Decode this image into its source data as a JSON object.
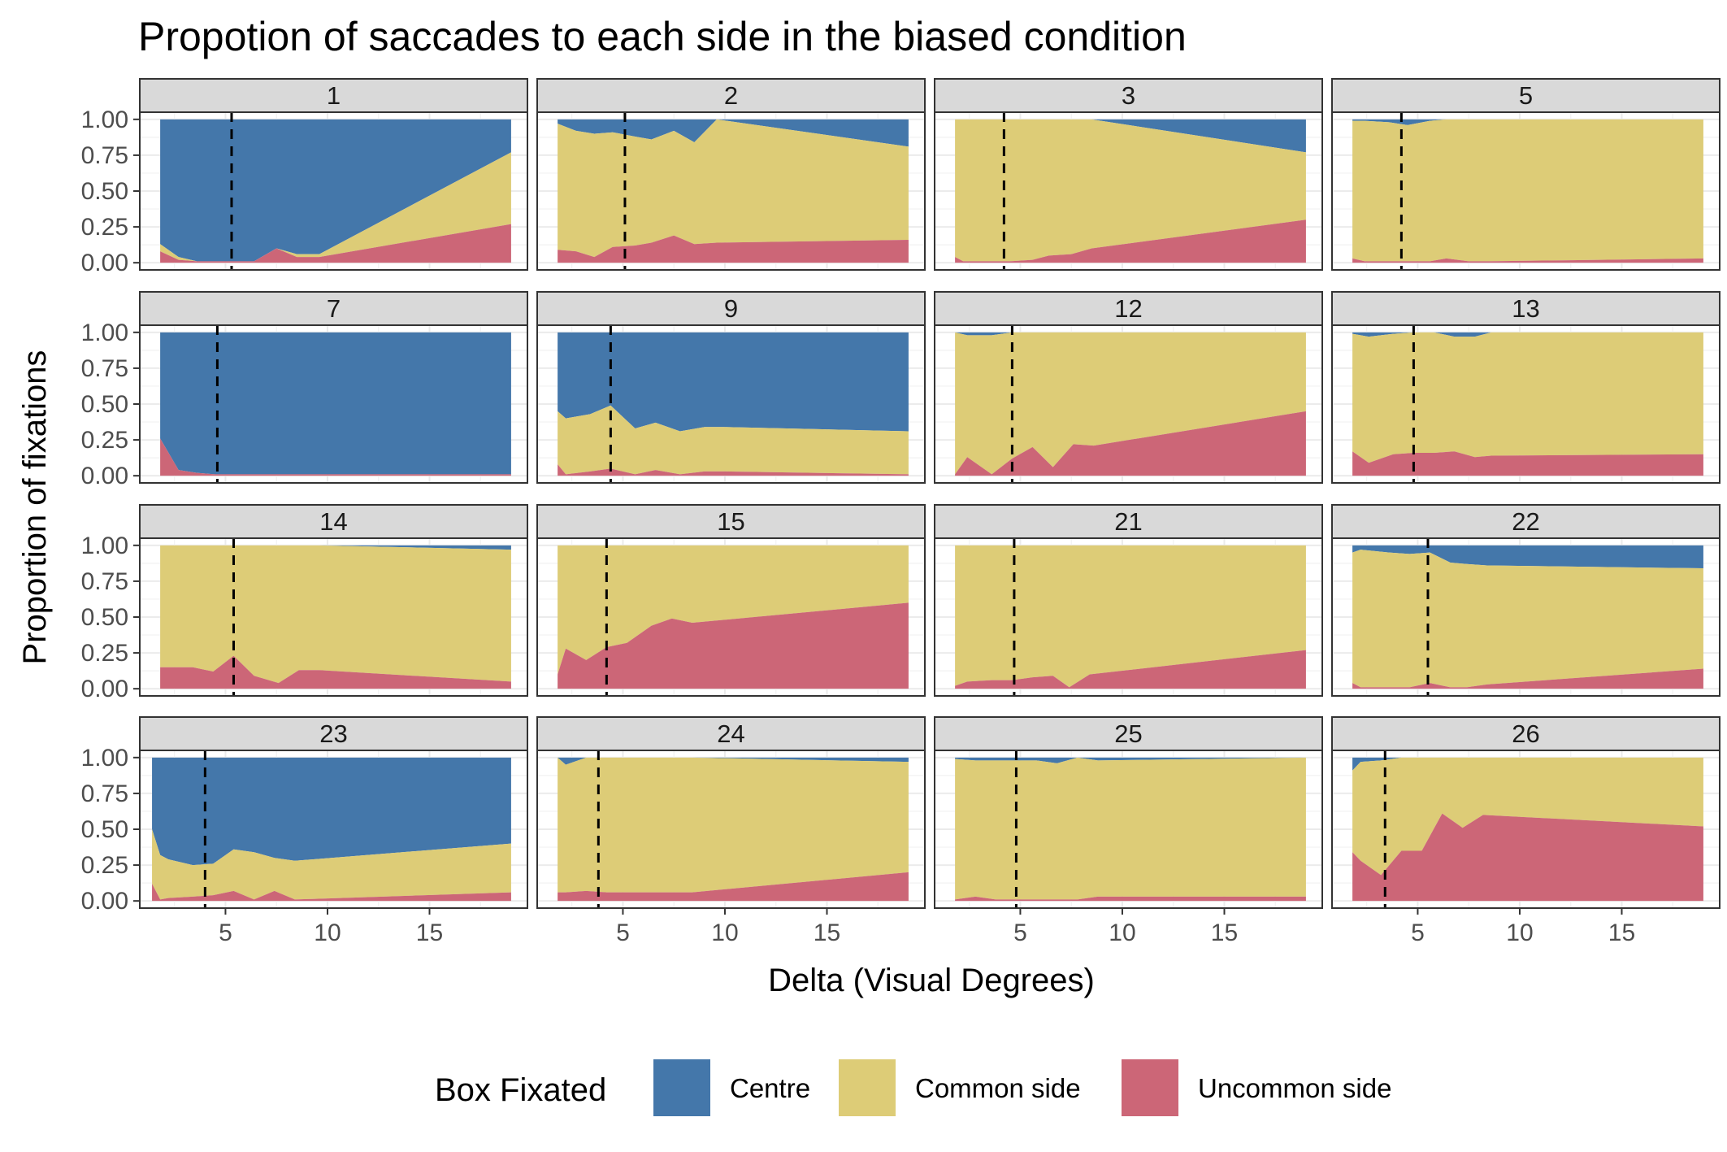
{
  "chart_data": {
    "type": "area",
    "stacked": true,
    "title": "Propotion of saccades to each side in the biased condition",
    "xlabel": "Delta (Visual Degrees)",
    "ylabel": "Proportion of fixations",
    "xlim": [
      0.8,
      19.8
    ],
    "ylim": [
      -0.05,
      1.05
    ],
    "xticks": [
      5,
      10,
      15
    ],
    "yticks": [
      0.0,
      0.25,
      0.5,
      0.75,
      1.0
    ],
    "ytick_labels": [
      "0.00",
      "0.25",
      "0.50",
      "0.75",
      "1.00"
    ],
    "layout": {
      "rows": 4,
      "cols": 4
    },
    "legend": {
      "title": "Box Fixated",
      "position": "bottom",
      "entries": [
        {
          "name": "Centre",
          "color": "#4477AA"
        },
        {
          "name": "Common side",
          "color": "#DDCC77"
        },
        {
          "name": "Uncommon side",
          "color": "#CC6677"
        }
      ]
    },
    "panels": [
      {
        "label": "1",
        "vline": 5.3,
        "x": [
          1.8,
          2.7,
          3.6,
          5.3,
          6.4,
          7.5,
          8.5,
          9.6,
          19.0
        ],
        "uncommon": [
          0.08,
          0.02,
          0.01,
          0.01,
          0.01,
          0.1,
          0.04,
          0.04,
          0.27
        ],
        "common": [
          0.05,
          0.02,
          0.0,
          0.0,
          0.0,
          0.0,
          0.02,
          0.02,
          0.5
        ]
      },
      {
        "label": "2",
        "vline": 5.1,
        "x": [
          1.8,
          2.7,
          3.6,
          4.5,
          5.6,
          6.4,
          7.5,
          8.5,
          9.6,
          19.0
        ],
        "uncommon": [
          0.09,
          0.08,
          0.04,
          0.11,
          0.12,
          0.14,
          0.19,
          0.13,
          0.14,
          0.16
        ],
        "common": [
          0.88,
          0.84,
          0.86,
          0.8,
          0.76,
          0.72,
          0.73,
          0.71,
          0.86,
          0.65
        ]
      },
      {
        "label": "3",
        "vline": 4.2,
        "x": [
          1.8,
          2.2,
          3.6,
          4.5,
          5.6,
          6.4,
          7.5,
          8.5,
          19.0
        ],
        "uncommon": [
          0.04,
          0.01,
          0.01,
          0.01,
          0.02,
          0.05,
          0.06,
          0.1,
          0.3
        ],
        "common": [
          0.96,
          0.99,
          0.99,
          0.99,
          0.98,
          0.95,
          0.94,
          0.9,
          0.47
        ]
      },
      {
        "label": "5",
        "vline": 4.2,
        "x": [
          1.8,
          2.4,
          3.6,
          4.5,
          5.6,
          6.4,
          7.5,
          8.5,
          19.0
        ],
        "uncommon": [
          0.03,
          0.01,
          0.01,
          0.01,
          0.01,
          0.03,
          0.01,
          0.01,
          0.03
        ],
        "common": [
          0.96,
          0.98,
          0.97,
          0.95,
          0.98,
          0.97,
          0.99,
          0.99,
          0.97
        ]
      },
      {
        "label": "7",
        "vline": 4.6,
        "x": [
          1.8,
          2.7,
          3.6,
          4.5,
          5.6,
          19.0
        ],
        "uncommon": [
          0.26,
          0.04,
          0.02,
          0.01,
          0.01,
          0.01
        ],
        "common": [
          0.0,
          0.0,
          0.0,
          0.0,
          0.0,
          0.0
        ]
      },
      {
        "label": "9",
        "vline": 4.4,
        "x": [
          1.8,
          2.2,
          3.4,
          4.4,
          5.6,
          6.6,
          7.8,
          9.0,
          10.0,
          19.0
        ],
        "uncommon": [
          0.08,
          0.01,
          0.03,
          0.05,
          0.01,
          0.04,
          0.01,
          0.03,
          0.03,
          0.01
        ],
        "common": [
          0.37,
          0.39,
          0.4,
          0.44,
          0.32,
          0.33,
          0.3,
          0.31,
          0.31,
          0.3
        ]
      },
      {
        "label": "12",
        "vline": 4.6,
        "x": [
          1.8,
          2.4,
          3.6,
          4.6,
          5.6,
          6.6,
          7.6,
          8.6,
          19.0
        ],
        "uncommon": [
          0.01,
          0.13,
          0.01,
          0.12,
          0.2,
          0.06,
          0.22,
          0.21,
          0.45
        ],
        "common": [
          0.99,
          0.85,
          0.97,
          0.88,
          0.8,
          0.94,
          0.78,
          0.79,
          0.55
        ]
      },
      {
        "label": "13",
        "vline": 4.8,
        "x": [
          1.8,
          2.6,
          3.8,
          4.8,
          5.8,
          6.8,
          7.8,
          8.6,
          19.0
        ],
        "uncommon": [
          0.17,
          0.09,
          0.15,
          0.16,
          0.16,
          0.17,
          0.13,
          0.14,
          0.15
        ],
        "common": [
          0.82,
          0.88,
          0.84,
          0.84,
          0.84,
          0.8,
          0.84,
          0.86,
          0.85
        ]
      },
      {
        "label": "14",
        "vline": 5.4,
        "x": [
          1.8,
          3.4,
          4.4,
          5.4,
          6.4,
          7.6,
          8.6,
          9.6,
          19.0
        ],
        "uncommon": [
          0.15,
          0.15,
          0.12,
          0.23,
          0.09,
          0.04,
          0.13,
          0.13,
          0.05
        ],
        "common": [
          0.85,
          0.85,
          0.88,
          0.77,
          0.91,
          0.96,
          0.87,
          0.87,
          0.92
        ]
      },
      {
        "label": "15",
        "vline": 4.2,
        "x": [
          1.8,
          2.2,
          3.2,
          4.2,
          5.2,
          6.4,
          7.4,
          8.4,
          19.0
        ],
        "uncommon": [
          0.1,
          0.28,
          0.2,
          0.29,
          0.32,
          0.44,
          0.49,
          0.46,
          0.6
        ],
        "common": [
          0.9,
          0.72,
          0.8,
          0.71,
          0.68,
          0.56,
          0.51,
          0.54,
          0.4
        ]
      },
      {
        "label": "21",
        "vline": 4.7,
        "x": [
          1.8,
          2.4,
          3.6,
          4.6,
          5.6,
          6.6,
          7.4,
          8.4,
          19.0
        ],
        "uncommon": [
          0.02,
          0.05,
          0.06,
          0.06,
          0.08,
          0.09,
          0.01,
          0.1,
          0.27
        ],
        "common": [
          0.98,
          0.95,
          0.94,
          0.94,
          0.92,
          0.91,
          0.99,
          0.9,
          0.73
        ]
      },
      {
        "label": "22",
        "vline": 5.5,
        "x": [
          1.8,
          2.2,
          3.6,
          4.6,
          5.6,
          6.6,
          7.4,
          8.4,
          19.0
        ],
        "uncommon": [
          0.04,
          0.01,
          0.01,
          0.01,
          0.04,
          0.01,
          0.01,
          0.03,
          0.14
        ],
        "common": [
          0.91,
          0.96,
          0.94,
          0.93,
          0.91,
          0.87,
          0.86,
          0.83,
          0.7
        ]
      },
      {
        "label": "23",
        "vline": 4.0,
        "x": [
          1.4,
          1.8,
          2.2,
          3.4,
          4.4,
          5.4,
          6.4,
          7.4,
          8.4,
          19.0
        ],
        "uncommon": [
          0.12,
          0.01,
          0.02,
          0.03,
          0.04,
          0.07,
          0.01,
          0.07,
          0.01,
          0.06
        ],
        "common": [
          0.38,
          0.31,
          0.27,
          0.22,
          0.22,
          0.29,
          0.33,
          0.23,
          0.27,
          0.34
        ]
      },
      {
        "label": "24",
        "vline": 3.8,
        "x": [
          1.8,
          2.2,
          3.2,
          4.2,
          8.4,
          19.0
        ],
        "uncommon": [
          0.06,
          0.06,
          0.07,
          0.06,
          0.06,
          0.2
        ],
        "common": [
          0.94,
          0.89,
          0.93,
          0.94,
          0.94,
          0.77
        ]
      },
      {
        "label": "25",
        "vline": 4.8,
        "x": [
          1.8,
          2.8,
          3.8,
          4.8,
          5.8,
          6.8,
          7.8,
          8.8,
          19.0
        ],
        "uncommon": [
          0.01,
          0.03,
          0.01,
          0.01,
          0.01,
          0.01,
          0.01,
          0.03,
          0.03
        ],
        "common": [
          0.98,
          0.95,
          0.97,
          0.97,
          0.97,
          0.95,
          0.99,
          0.95,
          0.97
        ]
      },
      {
        "label": "26",
        "vline": 3.4,
        "x": [
          1.8,
          2.2,
          3.2,
          4.2,
          5.2,
          6.2,
          7.2,
          8.2,
          19.0
        ],
        "uncommon": [
          0.34,
          0.28,
          0.18,
          0.35,
          0.35,
          0.61,
          0.51,
          0.6,
          0.52
        ],
        "common": [
          0.57,
          0.69,
          0.8,
          0.65,
          0.65,
          0.39,
          0.49,
          0.4,
          0.48
        ]
      }
    ]
  }
}
